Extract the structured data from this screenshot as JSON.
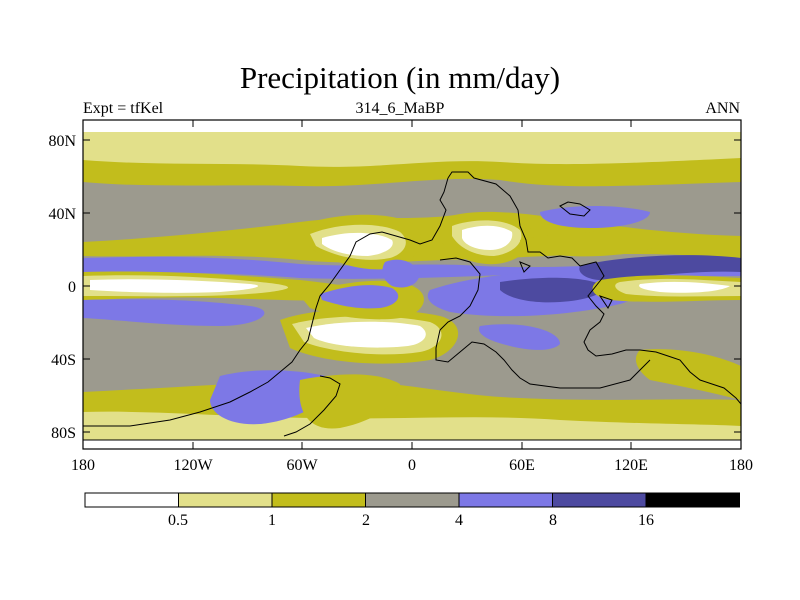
{
  "header": {
    "title": "Precipitation (in mm/day)",
    "left_label": "Expt = tfKel",
    "center_label": "314_6_MaBP",
    "right_label": "ANN"
  },
  "axes": {
    "lat_ticks": [
      "80N",
      "40N",
      "0",
      "40S",
      "80S"
    ],
    "lon_ticks": [
      "180",
      "120W",
      "60W",
      "0",
      "60E",
      "120E",
      "180"
    ]
  },
  "colorbar": {
    "labels": [
      "0.5",
      "1",
      "2",
      "4",
      "8",
      "16"
    ],
    "colors": [
      "#ffffff",
      "#e2e08a",
      "#c2bd1c",
      "#9c9a8e",
      "#7d78e6",
      "#4d4aa0",
      "#000000"
    ]
  }
}
